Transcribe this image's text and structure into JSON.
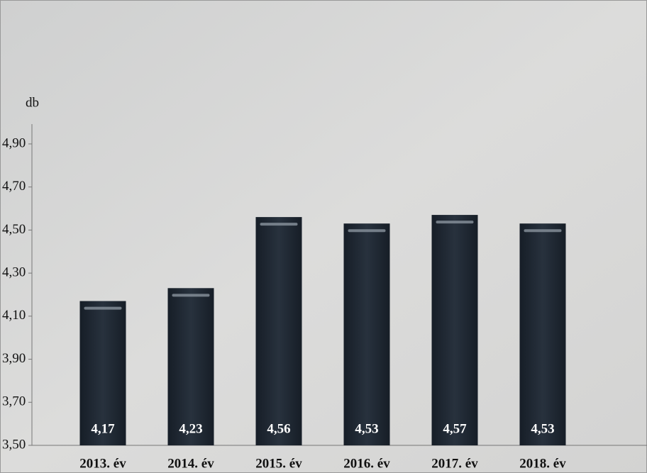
{
  "chart_data": {
    "type": "bar",
    "y_unit_label": "db",
    "categories": [
      "2013. év",
      "2014. év",
      "2015. év",
      "2016. év",
      "2017. év",
      "2018. év"
    ],
    "values": [
      4.17,
      4.23,
      4.56,
      4.53,
      4.57,
      4.53
    ],
    "value_labels": [
      "4,17",
      "4,23",
      "4,56",
      "4,53",
      "4,57",
      "4,53"
    ],
    "color": "#1f2833",
    "ylim": [
      3.5,
      5.0
    ],
    "yticks": [
      {
        "value": 3.5,
        "label": "3,50"
      },
      {
        "value": 3.7,
        "label": "3,70"
      },
      {
        "value": 3.9,
        "label": "3,90"
      },
      {
        "value": 4.1,
        "label": "4,10"
      },
      {
        "value": 4.3,
        "label": "4,30"
      },
      {
        "value": 4.5,
        "label": "4,50"
      },
      {
        "value": 4.7,
        "label": "4,70"
      },
      {
        "value": 4.9,
        "label": "4,90"
      }
    ]
  }
}
